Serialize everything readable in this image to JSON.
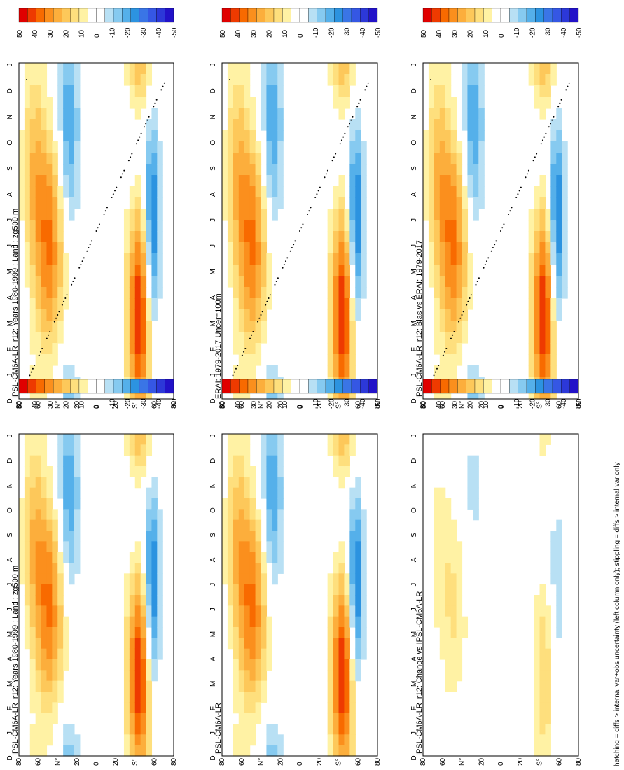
{
  "figure": {
    "footnote": "hatching = diffs > internal var+obs uncertainty (left column only); stippling = diffs > internal var only",
    "months": [
      "D",
      "J",
      "F",
      "M",
      "A",
      "M",
      "J",
      "J",
      "A",
      "S",
      "O",
      "N",
      "D",
      "J"
    ],
    "lat_labels": [
      "80",
      "60",
      "N°",
      "20",
      "0",
      "20",
      "S°",
      "60",
      "80"
    ],
    "colorbar_labels": [
      "50",
      "40",
      "30",
      "20",
      "10",
      "0",
      "-10",
      "-20",
      "-30",
      "-40",
      "-50"
    ],
    "colorbar_colors": [
      "#e00000",
      "#ee3a00",
      "#f86a00",
      "#fb8f1d",
      "#fcae3c",
      "#fdc85a",
      "#fedf7d",
      "#fff2a4",
      "#ffffff",
      "#ffffff",
      "#b8e0f4",
      "#86caf0",
      "#55b0ea",
      "#2c93e0",
      "#3a75e6",
      "#3557e4",
      "#2c38d8",
      "#2212c8"
    ]
  },
  "chart_data": [
    {
      "type": "heatmap",
      "title": "IPSL-CM6A-LR_r12: Years 1980-1999 : Land : zg500 m",
      "x": "months",
      "y": "latitude",
      "zlim": [
        -50,
        50
      ],
      "stippling": true
    },
    {
      "type": "heatmap",
      "title": "IPSL-CM6A-LR_r12: Years 1980-1999 : Land : zg500 m",
      "x": "months",
      "y": "latitude",
      "zlim": [
        -50,
        50
      ],
      "stippling": false
    },
    {
      "type": "heatmap",
      "title": "ERAI: 1979-2017 Uncer=100m",
      "x": "months",
      "y": "latitude",
      "zlim": [
        -50,
        50
      ],
      "stippling": true
    },
    {
      "type": "heatmap",
      "title": "IPSL-CM6A-LR",
      "x": "months",
      "y": "latitude",
      "zlim": [
        -50,
        50
      ],
      "stippling": false
    },
    {
      "type": "heatmap",
      "title": "IPSL-CM6A-LR_r12: Bias vs ERAI: 1979-2017",
      "x": "months",
      "y": "latitude",
      "zlim": [
        -50,
        50
      ],
      "stippling": true
    },
    {
      "type": "heatmap",
      "title": "IPSL-CM6A-LR_r12: Change vs IPSL-CM6A-LR",
      "x": "months",
      "y": "latitude",
      "zlim": [
        -50,
        50
      ],
      "stippling": false
    }
  ]
}
